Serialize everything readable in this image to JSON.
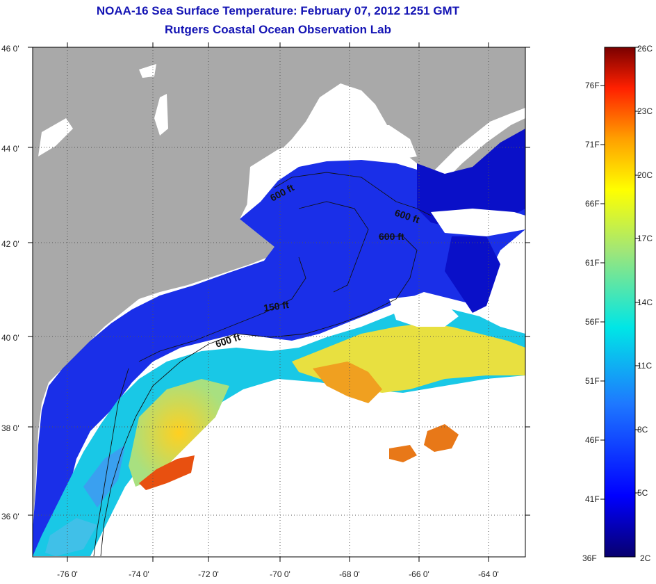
{
  "header": {
    "title": "NOAA-16 Sea Surface Temperature:  February 07, 2012 1251 GMT",
    "subtitle": "Rutgers Coastal Ocean Observation Lab"
  },
  "map": {
    "lat_labels": [
      "46 0'",
      "44 0'",
      "42 0'",
      "40 0'",
      "38 0'",
      "36 0'"
    ],
    "lon_labels": [
      "-76 0'",
      "-74 0'",
      "-72 0'",
      "-70 0'",
      "-68 0'",
      "-66 0'",
      "-64 0'"
    ],
    "contour_labels": [
      "600 ft",
      "600 ft",
      "600 ft",
      "150 ft",
      "600 ft"
    ]
  },
  "colorbar": {
    "fahrenheit_labels": [
      "76F",
      "71F",
      "66F",
      "61F",
      "56F",
      "51F",
      "46F",
      "41F",
      "36F"
    ],
    "celsius_labels": [
      "26C",
      "23C",
      "20C",
      "17C",
      "14C",
      "11C",
      "8C",
      "5C",
      "2C"
    ]
  },
  "colors": {
    "land": "#a9a9a9",
    "cloud": "#ffffff",
    "title": "#1414b4"
  }
}
